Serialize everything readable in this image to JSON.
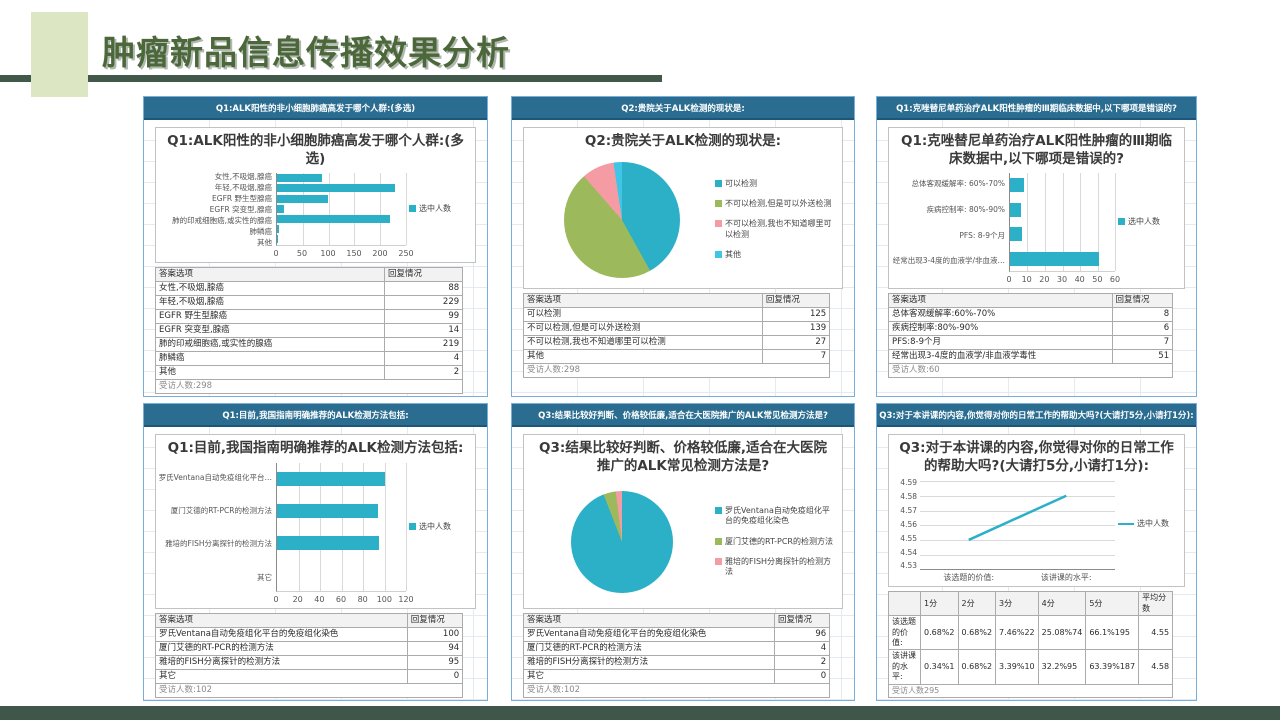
{
  "slide": {
    "title": "肿瘤新品信息传播效果分析"
  },
  "colors": {
    "accent_teal": "#2cb0c7",
    "pie_green": "#9cba5c",
    "pie_pink": "#f49ba3",
    "pie_lightblue": "#3fc6e6",
    "header_blue": "#2a6d90",
    "title_green": "#4c683a",
    "footer_bar_green": "#3e574a"
  },
  "panels": [
    {
      "header": "Q1:ALK阳性的非小细胞肺癌高发于哪个人群:(多选)",
      "table": {
        "headers": [
          "答案选项",
          "回复情况"
        ],
        "rows": [
          [
            "女性,不吸烟,腺癌",
            "88"
          ],
          [
            "年轻,不吸烟,腺癌",
            "229"
          ],
          [
            "EGFR 野生型腺癌",
            "99"
          ],
          [
            "EGFR 突变型,腺癌",
            "14"
          ],
          [
            "肺的印戒细胞癌,或实性的腺癌",
            "219"
          ],
          [
            "肺鳞癌",
            "4"
          ],
          [
            "其他",
            "2"
          ]
        ],
        "footer": "受访人数:298"
      }
    },
    {
      "header": "Q2:贵院关于ALK检测的现状是:",
      "table": {
        "headers": [
          "答案选项",
          "回复情况"
        ],
        "rows": [
          [
            "可以检测",
            "125"
          ],
          [
            "不可以检测,但是可以外送检测",
            "139"
          ],
          [
            "不可以检测,我也不知道哪里可以检测",
            "27"
          ],
          [
            "其他",
            "7"
          ]
        ],
        "footer": "受访人数:298"
      }
    },
    {
      "header": "Q1:克唑替尼单药治疗ALK阳性肿瘤的Ⅲ期临床数据中,以下哪项是错误的?",
      "table": {
        "headers": [
          "答案选项",
          "回复情况"
        ],
        "rows": [
          [
            "总体客观缓解率:60%-70%",
            "8"
          ],
          [
            "疾病控制率:80%-90%",
            "6"
          ],
          [
            "PFS:8-9个月",
            "7"
          ],
          [
            "经常出现3-4度的血液学/非血液学毒性",
            "51"
          ]
        ],
        "footer": "受访人数:60"
      }
    },
    {
      "header": "Q1:目前,我国指南明确推荐的ALK检测方法包括:",
      "table": {
        "headers": [
          "答案选项",
          "回复情况"
        ],
        "rows": [
          [
            "罗氏Ventana自动免疫组化平台的免疫组化染色",
            "100"
          ],
          [
            "厦门艾德的RT-PCR的检测方法",
            "94"
          ],
          [
            "雅培的FISH分离探针的检测方法",
            "95"
          ],
          [
            "其它",
            "0"
          ]
        ],
        "footer": "受访人数:102"
      }
    },
    {
      "header": "Q3:结果比较好判断、价格较低廉,适合在大医院推广的ALK常见检测方法是?",
      "table": {
        "headers": [
          "答案选项",
          "回复情况"
        ],
        "rows": [
          [
            "罗氏Ventana自动免疫组化平台的免疫组化染色",
            "96"
          ],
          [
            "厦门艾德的RT-PCR的检测方法",
            "4"
          ],
          [
            "雅培的FISH分离探针的检测方法",
            "2"
          ],
          [
            "其它",
            "0"
          ]
        ],
        "footer": "受访人数:102"
      }
    },
    {
      "header": "Q3:对于本讲课的内容,你觉得对你的日常工作的帮助大吗?(大请打5分,小请打1分):",
      "table": {
        "headers": [
          "",
          "1分",
          "2分",
          "3分",
          "4分",
          "5分",
          "平均分数"
        ],
        "rows": [
          [
            "该选题的价值:",
            "0.68%2",
            "0.68%2",
            "7.46%22",
            "25.08%74",
            "66.1%195",
            "4.55"
          ],
          [
            "该讲课的水平:",
            "0.34%1",
            "0.68%2",
            "3.39%10",
            "32.2%95",
            "63.39%187",
            "4.58"
          ]
        ],
        "footer": "受访人数295"
      }
    }
  ],
  "chart_data": [
    {
      "type": "bar",
      "orientation": "horizontal",
      "title": "Q1:ALK阳性的非小细胞肺癌高发于哪个人群:(多选)",
      "categories": [
        "女性,不吸烟,腺癌",
        "年轻,不吸烟,腺癌",
        "EGFR 野生型腺癌",
        "EGFR 突变型,腺癌",
        "肺的印戒细胞癌,或实性的腺癌",
        "肺鳞癌",
        "其他"
      ],
      "values": [
        88,
        229,
        99,
        14,
        219,
        4,
        2
      ],
      "xlim": [
        0,
        250
      ],
      "xticks": [
        0,
        50,
        100,
        150,
        200,
        250
      ],
      "legend": "选中人数",
      "color": "#2cb0c7",
      "grid": true,
      "legend_position": "right"
    },
    {
      "type": "pie",
      "title": "Q2:贵院关于ALK检测的现状是:",
      "labels": [
        "可以检测",
        "不可以检测,但是可以外送检测",
        "不可以检测,我也不知道哪里可以检测",
        "其他"
      ],
      "values": [
        125,
        139,
        27,
        7
      ],
      "colors": [
        "#2cb0c7",
        "#9cba5c",
        "#f49ba3",
        "#3fc6e6"
      ],
      "legend_position": "right"
    },
    {
      "type": "bar",
      "orientation": "horizontal",
      "title": "Q1:克唑替尼单药治疗ALK阳性肿瘤的Ⅲ期临床数据中,以下哪项是错误的?",
      "categories": [
        "总体客观缓解率: 60%-70%",
        "疾病控制率: 80%-90%",
        "PFS: 8-9个月",
        "经常出现3-4度的血液学/非血液…"
      ],
      "values": [
        8,
        6,
        7,
        51
      ],
      "xlim": [
        0,
        60
      ],
      "xticks": [
        0,
        10,
        20,
        30,
        40,
        50,
        60
      ],
      "legend": "选中人数",
      "color": "#2cb0c7",
      "grid": true,
      "legend_position": "right"
    },
    {
      "type": "bar",
      "orientation": "horizontal",
      "title": "Q1:目前,我国指南明确推荐的ALK检测方法包括:",
      "categories": [
        "罗氏Ventana自动免疫组化平台…",
        "厦门艾德的RT-PCR的检测方法",
        "雅培的FISH分离探针的检测方法",
        "其它"
      ],
      "values": [
        100,
        94,
        95,
        0
      ],
      "xlim": [
        0,
        120
      ],
      "xticks": [
        0,
        20,
        40,
        60,
        80,
        100,
        120
      ],
      "legend": "选中人数",
      "color": "#2cb0c7",
      "grid": true,
      "legend_position": "right"
    },
    {
      "type": "pie",
      "title": "Q3:结果比较好判断、价格较低廉,适合在大医院推广的ALK常见检测方法是?",
      "labels": [
        "罗氏Ventana自动免疫组化平台的免疫组化染色",
        "厦门艾德的RT-PCR的检测方法",
        "雅培的FISH分离探针的检测方法"
      ],
      "values": [
        96,
        4,
        2
      ],
      "colors": [
        "#2cb0c7",
        "#9cba5c",
        "#f49ba3"
      ],
      "legend_position": "right"
    },
    {
      "type": "line",
      "title": "Q3:对于本讲课的内容,你觉得对你的日常工作的帮助大吗?(大请打5分,小请打1分):",
      "categories": [
        "该选题的价值:",
        "该讲课的水平:"
      ],
      "values": [
        4.55,
        4.58
      ],
      "ylim": [
        4.53,
        4.59
      ],
      "yticks": [
        4.59,
        4.58,
        4.57,
        4.56,
        4.55,
        4.54,
        4.53
      ],
      "legend": "选中人数",
      "color": "#2cb0c7",
      "grid": true,
      "legend_position": "right"
    }
  ]
}
